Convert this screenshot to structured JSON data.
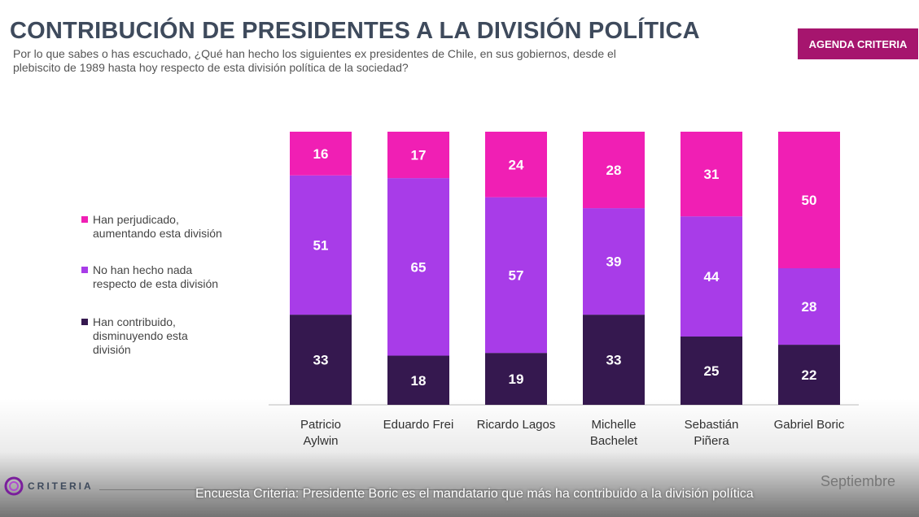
{
  "title": "CONTRIBUCIÓN DE PRESIDENTES A LA DIVISIÓN POLÍTICA",
  "subtitle_line1": "Por lo que sabes o has escuchado, ¿Qué han hecho los siguientes ex presidentes de Chile, en sus gobiernos, desde el",
  "subtitle_line2": "plebiscito de 1989 hasta hoy respecto de esta división política de la sociedad?",
  "brand_label": "AGENDA CRITERIA",
  "logo_text": "CRITERIA",
  "date_label": "Septiembre",
  "caption": "Encuesta Criteria: Presidente Boric es el mandatario que más ha contribuido a la división política",
  "colors": {
    "perjudicado": "#f01fb4",
    "nada": "#a83ce8",
    "contribuido": "#35184f",
    "brand": "#a6156e",
    "logo_purple": "#7a1e9c"
  },
  "legend": [
    {
      "line1": "Han perjudicado,",
      "line2": "aumentando esta división",
      "line3": "",
      "color": "#f01fb4"
    },
    {
      "line1": "No han hecho nada",
      "line2": "respecto de esta división",
      "line3": "",
      "color": "#a83ce8"
    },
    {
      "line1": "Han contribuido,",
      "line2": "disminuyendo esta",
      "line3": "división",
      "color": "#35184f"
    }
  ],
  "chart_data": {
    "type": "bar",
    "stacked": true,
    "orientation": "vertical",
    "categories": [
      [
        "Patricio",
        "Aylwin"
      ],
      [
        "Eduardo Frei"
      ],
      [
        "Ricardo Lagos"
      ],
      [
        "Michelle",
        "Bachelet"
      ],
      [
        "Sebastián",
        "Piñera"
      ],
      [
        "Gabriel Boric"
      ]
    ],
    "series": [
      {
        "name": "Han contribuido, disminuyendo esta división",
        "color": "#35184f",
        "values": [
          33,
          18,
          19,
          33,
          25,
          22
        ]
      },
      {
        "name": "No han hecho nada respecto de esta división",
        "color": "#a83ce8",
        "values": [
          51,
          65,
          57,
          39,
          44,
          28
        ]
      },
      {
        "name": "Han perjudicado, aumentando esta división",
        "color": "#f01fb4",
        "values": [
          16,
          17,
          24,
          28,
          31,
          50
        ]
      }
    ],
    "unit": "%",
    "legend_position": "left"
  }
}
